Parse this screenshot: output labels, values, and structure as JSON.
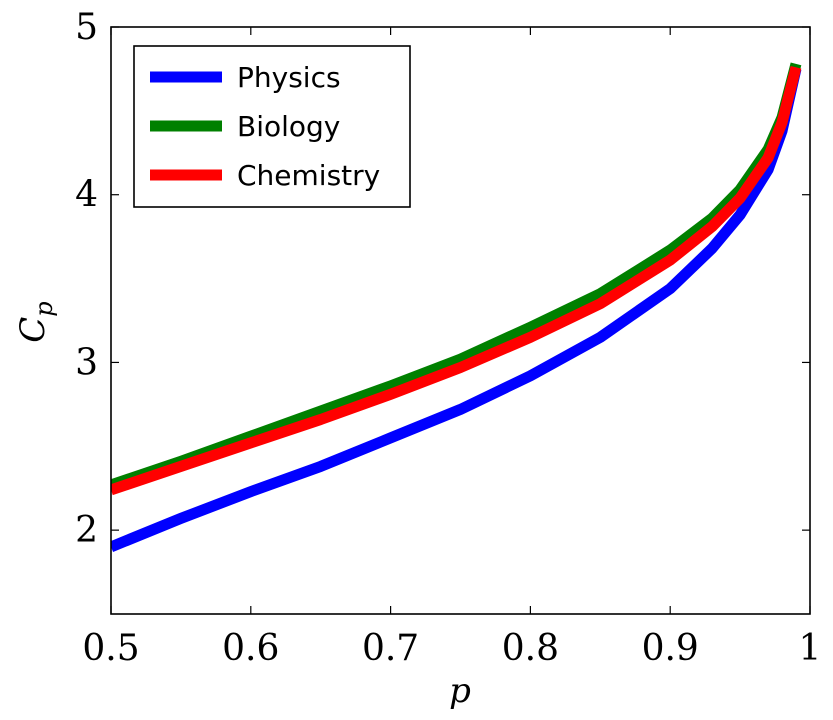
{
  "chart_data": {
    "type": "line",
    "xlabel": "p",
    "ylabel_main": "C",
    "ylabel_sub": "p",
    "xlim": [
      0.5,
      1.0
    ],
    "ylim": [
      1.5,
      5.0
    ],
    "x_ticks": [
      0.5,
      0.6,
      0.7,
      0.8,
      0.9,
      1.0
    ],
    "x_tick_labels": [
      "0.5",
      "0.6",
      "0.7",
      "0.8",
      "0.9",
      "1"
    ],
    "y_ticks": [
      2,
      3,
      4,
      5
    ],
    "y_tick_labels": [
      "2",
      "3",
      "4",
      "5"
    ],
    "grid": false,
    "legend_position": "top-left",
    "x": [
      0.5,
      0.55,
      0.6,
      0.65,
      0.7,
      0.75,
      0.8,
      0.85,
      0.9,
      0.93,
      0.95,
      0.97,
      0.98,
      0.99
    ],
    "series": [
      {
        "name": "Physics",
        "color": "#0000ff",
        "values": [
          1.9,
          2.07,
          2.23,
          2.38,
          2.55,
          2.72,
          2.92,
          3.15,
          3.44,
          3.68,
          3.88,
          4.15,
          4.38,
          4.75
        ]
      },
      {
        "name": "Biology",
        "color": "#008000",
        "values": [
          2.27,
          2.41,
          2.56,
          2.71,
          2.86,
          3.02,
          3.21,
          3.41,
          3.67,
          3.86,
          4.03,
          4.27,
          4.46,
          4.78
        ]
      },
      {
        "name": "Chemistry",
        "color": "#ff0000",
        "values": [
          2.24,
          2.38,
          2.52,
          2.66,
          2.81,
          2.97,
          3.15,
          3.35,
          3.61,
          3.81,
          3.98,
          4.22,
          4.43,
          4.76
        ]
      }
    ]
  }
}
